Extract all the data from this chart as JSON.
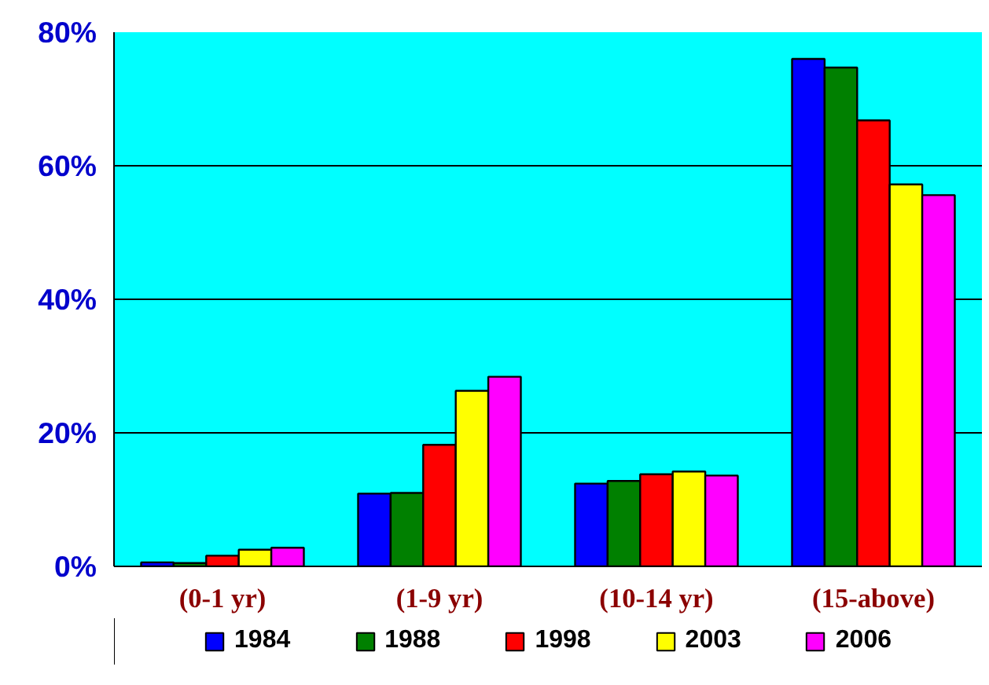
{
  "chart_data": {
    "type": "bar",
    "categories": [
      "(0-1 yr)",
      "(1-9 yr)",
      "(10-14 yr)",
      "(15-above)"
    ],
    "series": [
      {
        "name": "1984",
        "color": "#0000ff",
        "values": [
          0.6,
          10.9,
          12.4,
          76.0
        ]
      },
      {
        "name": "1988",
        "color": "#008000",
        "values": [
          0.5,
          11.0,
          12.8,
          74.7
        ]
      },
      {
        "name": "1998",
        "color": "#ff0000",
        "values": [
          1.6,
          18.2,
          13.8,
          66.8
        ]
      },
      {
        "name": "2003",
        "color": "#ffff00",
        "values": [
          2.5,
          26.3,
          14.2,
          57.2
        ]
      },
      {
        "name": "2006",
        "color": "#ff00ff",
        "values": [
          2.8,
          28.4,
          13.6,
          55.6
        ]
      }
    ],
    "ylim": [
      0,
      80
    ],
    "yticks": [
      {
        "value": 0,
        "label": "0%"
      },
      {
        "value": 20,
        "label": "20%"
      },
      {
        "value": 40,
        "label": "40%"
      },
      {
        "value": 60,
        "label": "60%"
      },
      {
        "value": 80,
        "label": "80%"
      }
    ],
    "grid": "y",
    "legend": "bottom"
  }
}
